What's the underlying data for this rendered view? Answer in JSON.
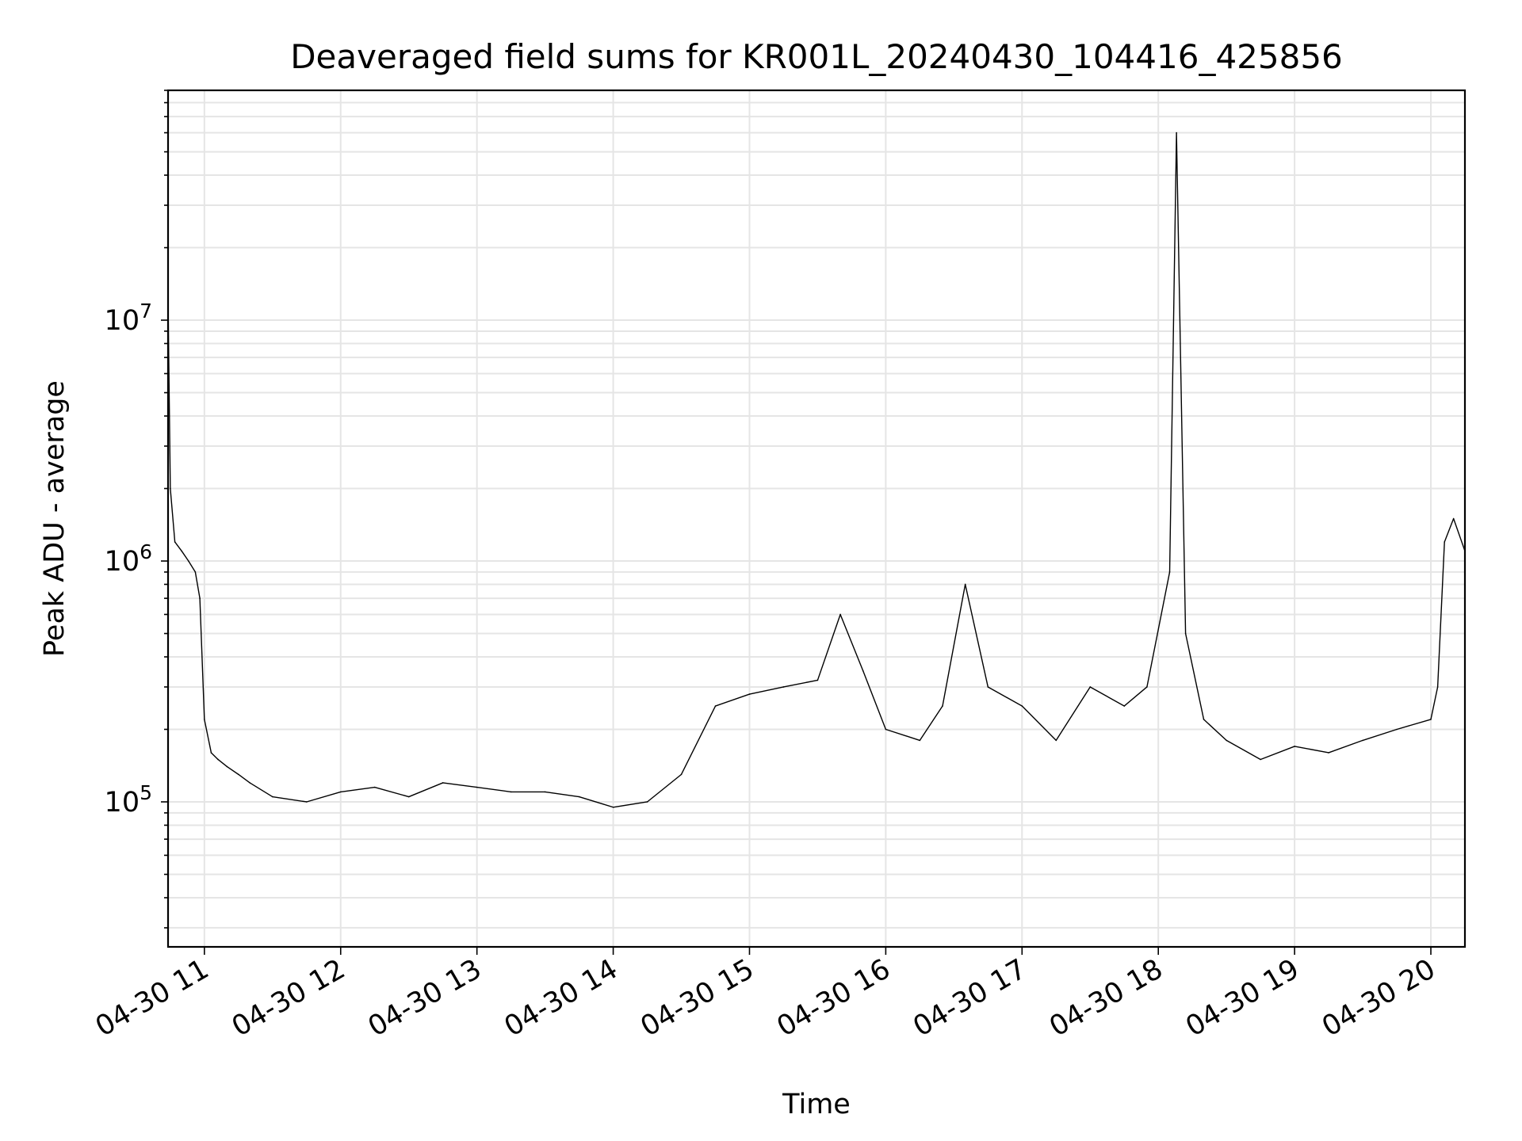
{
  "chart_data": {
    "type": "line",
    "title": "Deaveraged field sums for KR001L_20240430_104416_425856",
    "xlabel": "Time",
    "ylabel": "Peak ADU - average",
    "yscale": "log",
    "ylim": [
      25000,
      90000000
    ],
    "xlim": [
      "2024-04-30 10:44",
      "2024-04-30 20:15"
    ],
    "x_ticks": [
      "04-30 11",
      "04-30 12",
      "04-30 13",
      "04-30 14",
      "04-30 15",
      "04-30 16",
      "04-30 17",
      "04-30 18",
      "04-30 19",
      "04-30 20"
    ],
    "y_ticks": [
      {
        "value": 100000,
        "base": "10",
        "exp": "5"
      },
      {
        "value": 1000000,
        "base": "10",
        "exp": "6"
      },
      {
        "value": 10000000,
        "base": "10",
        "exp": "7"
      }
    ],
    "grid": true,
    "line_color": "#000000",
    "grid_color": "#e5e5e5",
    "series": [
      {
        "x": [
          "2024-04-30 10:44",
          "2024-04-30 10:45",
          "2024-04-30 10:47",
          "2024-04-30 10:50",
          "2024-04-30 10:53",
          "2024-04-30 10:56",
          "2024-04-30 10:58",
          "2024-04-30 11:00",
          "2024-04-30 11:03",
          "2024-04-30 11:06",
          "2024-04-30 11:10",
          "2024-04-30 11:15",
          "2024-04-30 11:20",
          "2024-04-30 11:30",
          "2024-04-30 11:45",
          "2024-04-30 12:00",
          "2024-04-30 12:15",
          "2024-04-30 12:30",
          "2024-04-30 12:45",
          "2024-04-30 13:00",
          "2024-04-30 13:15",
          "2024-04-30 13:30",
          "2024-04-30 13:45",
          "2024-04-30 14:00",
          "2024-04-30 14:15",
          "2024-04-30 14:30",
          "2024-04-30 14:45",
          "2024-04-30 15:00",
          "2024-04-30 15:15",
          "2024-04-30 15:30",
          "2024-04-30 15:40",
          "2024-04-30 15:50",
          "2024-04-30 16:00",
          "2024-04-30 16:15",
          "2024-04-30 16:25",
          "2024-04-30 16:35",
          "2024-04-30 16:45",
          "2024-04-30 17:00",
          "2024-04-30 17:15",
          "2024-04-30 17:30",
          "2024-04-30 17:45",
          "2024-04-30 17:55",
          "2024-04-30 18:05",
          "2024-04-30 18:08",
          "2024-04-30 18:12",
          "2024-04-30 18:20",
          "2024-04-30 18:30",
          "2024-04-30 18:45",
          "2024-04-30 19:00",
          "2024-04-30 19:15",
          "2024-04-30 19:30",
          "2024-04-30 19:45",
          "2024-04-30 20:00",
          "2024-04-30 20:03",
          "2024-04-30 20:06",
          "2024-04-30 20:10",
          "2024-04-30 20:15"
        ],
        "y": [
          12000000,
          2000000,
          1200000,
          1100000,
          1000000,
          900000,
          700000,
          220000,
          160000,
          150000,
          140000,
          130000,
          120000,
          105000,
          100000,
          110000,
          115000,
          105000,
          120000,
          115000,
          110000,
          110000,
          105000,
          95000,
          100000,
          130000,
          250000,
          280000,
          300000,
          320000,
          600000,
          350000,
          200000,
          180000,
          250000,
          800000,
          300000,
          250000,
          180000,
          300000,
          250000,
          300000,
          900000,
          60000000,
          500000,
          220000,
          180000,
          150000,
          170000,
          160000,
          180000,
          200000,
          220000,
          300000,
          1200000,
          1500000,
          1100000
        ]
      }
    ]
  }
}
